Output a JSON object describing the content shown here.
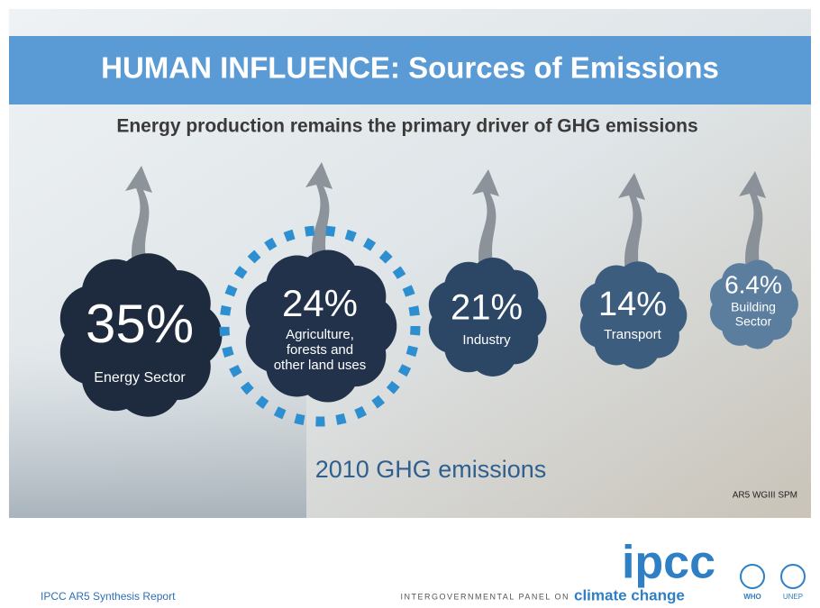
{
  "header": {
    "title": "HUMAN INFLUENCE: Sources of Emissions",
    "subtitle": "Energy production remains the primary driver of GHG emissions"
  },
  "sectors": [
    {
      "percent": "35%",
      "label": [
        "Energy Sector"
      ]
    },
    {
      "percent": "24%",
      "label": [
        "Agriculture,",
        "forests and",
        "other land uses"
      ]
    },
    {
      "percent": "21%",
      "label": [
        "Industry"
      ]
    },
    {
      "percent": "14%",
      "label": [
        "Transport"
      ]
    },
    {
      "percent": "6.4%",
      "label": [
        "Building",
        "Sector"
      ]
    }
  ],
  "caption": "2010 GHG emissions",
  "source": "AR5 WGIII SPM",
  "footer": {
    "report": "IPCC AR5 Synthesis Report",
    "logo": "ipcc",
    "org_prefix": "INTERGOVERNMENTAL PANEL ON",
    "org_suffix": "climate change",
    "partner1": "WHO",
    "partner2": "UNEP"
  }
}
